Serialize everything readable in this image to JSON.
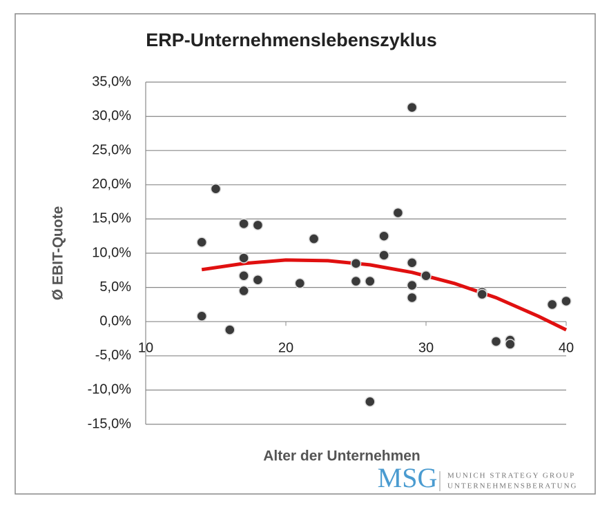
{
  "chart_data": {
    "type": "scatter",
    "title": "ERP-Unternehmenslebenszyklus",
    "x_label": "Alter der Unternehmen",
    "y_label": "Ø EBIT-Quote",
    "x": [
      14,
      14,
      15,
      16,
      17,
      17,
      17,
      17,
      18,
      18,
      21,
      22,
      25,
      25,
      26,
      26,
      27,
      27,
      28,
      29,
      29,
      29,
      29,
      30,
      34,
      34,
      35,
      36,
      36,
      39,
      40
    ],
    "values": [
      11.6,
      0.8,
      19.4,
      -1.2,
      14.3,
      9.3,
      6.7,
      4.5,
      14.1,
      6.1,
      5.6,
      12.1,
      8.5,
      5.9,
      5.9,
      -11.7,
      12.5,
      9.7,
      15.9,
      31.3,
      8.6,
      5.3,
      3.5,
      6.7,
      4.3,
      4.0,
      -2.9,
      -2.7,
      -3.3,
      2.5,
      3.0
    ],
    "color": "#3a3a3a",
    "trendline": {
      "color": "#e01010",
      "x": [
        14,
        17,
        20,
        23,
        26,
        29,
        32,
        35,
        38,
        40
      ],
      "values": [
        7.6,
        8.5,
        9.0,
        8.9,
        8.3,
        7.2,
        5.6,
        3.5,
        0.8,
        -1.2
      ]
    },
    "xlim": [
      10,
      40
    ],
    "xticks": [
      10,
      20,
      30,
      40
    ],
    "ylim": [
      -15,
      35
    ],
    "yticks": [
      {
        "value": -15,
        "label": "-15,0%"
      },
      {
        "value": -10,
        "label": "-10,0%"
      },
      {
        "value": -5,
        "label": "-5,0%"
      },
      {
        "value": 0,
        "label": "0,0%"
      },
      {
        "value": 5,
        "label": "5,0%"
      },
      {
        "value": 10,
        "label": "10,0%"
      },
      {
        "value": 15,
        "label": "15,0%"
      },
      {
        "value": 20,
        "label": "20,0%"
      },
      {
        "value": 25,
        "label": "25,0%"
      },
      {
        "value": 30,
        "label": "30,0%"
      },
      {
        "value": 35,
        "label": "35,0%"
      }
    ],
    "grid": true
  },
  "logo": {
    "mark": "MSG",
    "line1": "MUNICH STRATEGY GROUP",
    "line2": "UNTERNEHMENSBERATUNG"
  }
}
